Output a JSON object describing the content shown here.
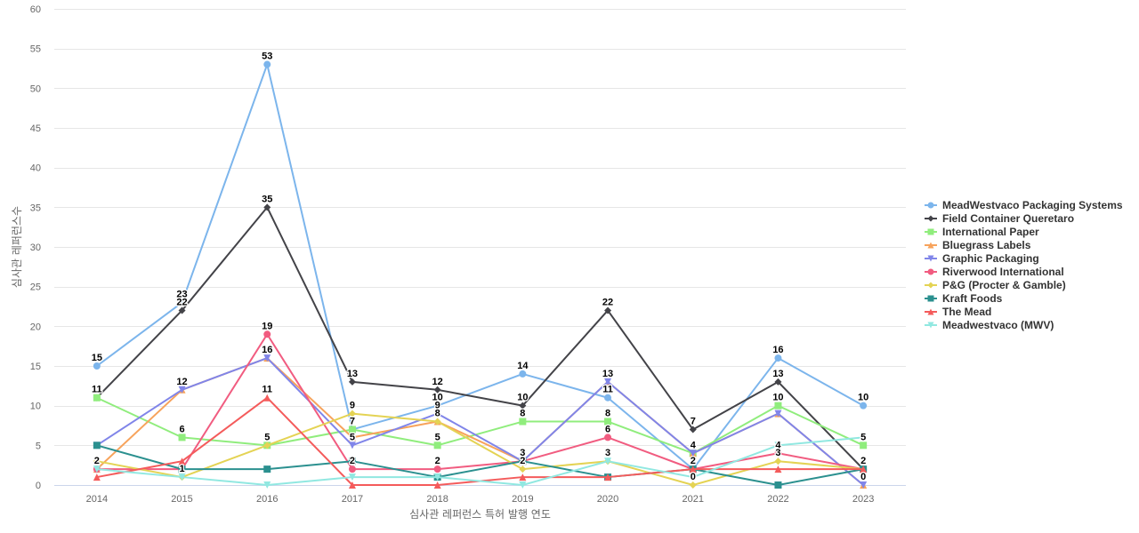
{
  "chart_data": {
    "type": "line",
    "title": "",
    "xlabel": "심사관 레퍼런스 특허 발행 연도",
    "ylabel": "심사관 레퍼런스수",
    "ylim": [
      0,
      60
    ],
    "y_ticks": [
      0,
      5,
      10,
      15,
      20,
      25,
      30,
      35,
      40,
      45,
      50,
      55,
      60
    ],
    "grid": true,
    "legend_position": "right",
    "categories": [
      "2014",
      "2015",
      "2016",
      "2017",
      "2018",
      "2019",
      "2020",
      "2021",
      "2022",
      "2023"
    ],
    "series": [
      {
        "name": "MeadWestvaco Packaging Systems",
        "color": "#7cb5ec",
        "marker": "circle",
        "values": [
          15,
          23,
          53,
          7,
          10,
          14,
          11,
          2,
          16,
          10
        ]
      },
      {
        "name": "Field Container Queretaro",
        "color": "#434348",
        "marker": "diamond",
        "values": [
          11,
          22,
          35,
          13,
          12,
          10,
          22,
          7,
          13,
          2
        ]
      },
      {
        "name": "International Paper",
        "color": "#90ed7d",
        "marker": "square",
        "values": [
          11,
          6,
          5,
          7,
          5,
          8,
          8,
          4,
          10,
          5
        ]
      },
      {
        "name": "Bluegrass Labels",
        "color": "#f7a35c",
        "marker": "triangle",
        "values": [
          2,
          12,
          16,
          6,
          8,
          3,
          13,
          4,
          9,
          0
        ]
      },
      {
        "name": "Graphic Packaging",
        "color": "#8085e9",
        "marker": "triangle-down",
        "values": [
          5,
          12,
          16,
          5,
          9,
          3,
          13,
          4,
          9,
          0
        ]
      },
      {
        "name": "Riverwood International",
        "color": "#f15c80",
        "marker": "circle",
        "values": [
          2,
          2,
          19,
          2,
          2,
          3,
          6,
          2,
          4,
          2
        ]
      },
      {
        "name": "P&G (Procter & Gamble)",
        "color": "#e4d354",
        "marker": "diamond",
        "values": [
          3,
          1,
          5,
          9,
          8,
          2,
          3,
          0,
          3,
          2
        ]
      },
      {
        "name": "Kraft Foods",
        "color": "#2b908f",
        "marker": "square",
        "values": [
          5,
          2,
          2,
          3,
          1,
          3,
          1,
          2,
          0,
          2
        ]
      },
      {
        "name": "The Mead",
        "color": "#f45b5b",
        "marker": "triangle",
        "values": [
          1,
          3,
          11,
          0,
          0,
          1,
          1,
          2,
          2,
          2
        ]
      },
      {
        "name": "Meadwestvaco (MWV)",
        "color": "#91e8e1",
        "marker": "triangle-down",
        "values": [
          2,
          1,
          0,
          1,
          1,
          0,
          3,
          1,
          5,
          6
        ]
      }
    ],
    "data_labels": [
      {
        "series": 0,
        "points": [
          0,
          1,
          2,
          3,
          4,
          5,
          6,
          7,
          8,
          9
        ]
      },
      {
        "series": 1,
        "points": [
          1,
          2,
          3,
          4,
          5,
          6,
          7,
          8,
          9
        ]
      },
      {
        "series": 2,
        "points": [
          0,
          1,
          3,
          4,
          5,
          6,
          8,
          9
        ]
      },
      {
        "series": 4,
        "points": [
          1,
          2,
          3,
          4,
          6,
          7,
          9
        ]
      },
      {
        "series": 5,
        "points": [
          0,
          2,
          3,
          4,
          5,
          6,
          8,
          9
        ]
      },
      {
        "series": 6,
        "points": [
          1,
          2,
          3,
          4,
          5,
          6,
          7,
          8,
          9
        ]
      },
      {
        "series": 8,
        "points": [
          2
        ]
      }
    ]
  }
}
